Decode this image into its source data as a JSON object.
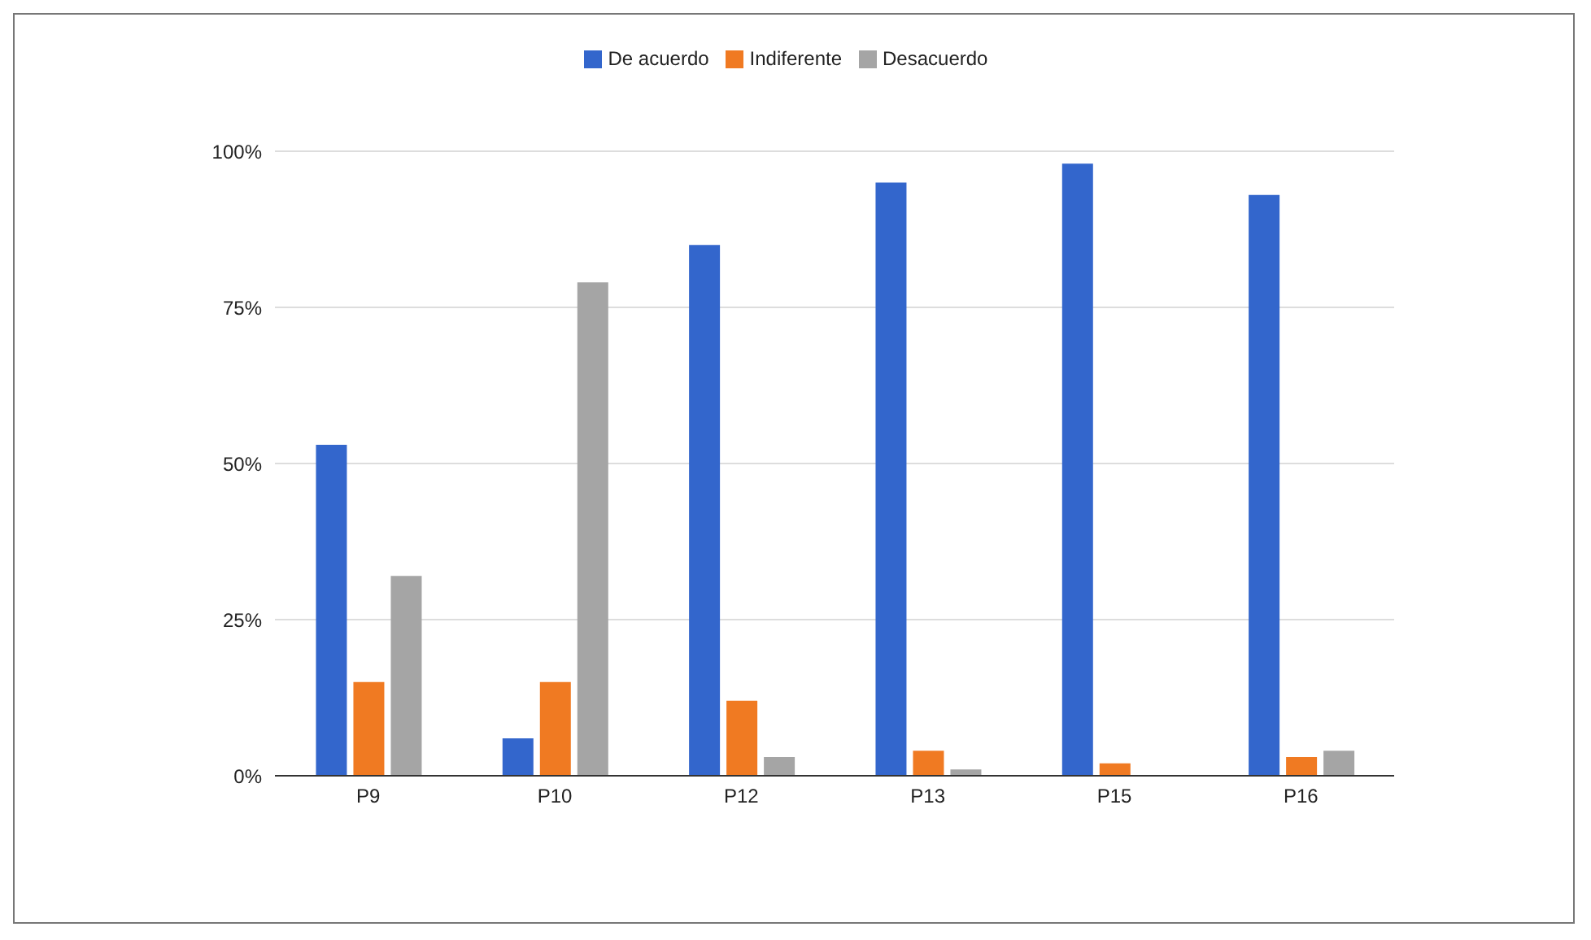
{
  "chart_data": {
    "type": "bar",
    "categories": [
      "P9",
      "P10",
      "P12",
      "P13",
      "P15",
      "P16"
    ],
    "series": [
      {
        "name": "De acuerdo",
        "color": "#3366cc",
        "values": [
          53,
          6,
          85,
          95,
          98,
          93
        ]
      },
      {
        "name": "Indiferente",
        "color": "#f07a22",
        "values": [
          15,
          15,
          12,
          4,
          2,
          3
        ]
      },
      {
        "name": "Desacuerdo",
        "color": "#a5a5a5",
        "values": [
          32,
          79,
          3,
          1,
          0,
          4
        ]
      }
    ],
    "ylim": [
      0,
      100
    ],
    "yticks": [
      {
        "value": 0,
        "label": "0%"
      },
      {
        "value": 25,
        "label": "25%"
      },
      {
        "value": 50,
        "label": "50%"
      },
      {
        "value": 75,
        "label": "75%"
      },
      {
        "value": 100,
        "label": "100%"
      }
    ],
    "grid": "y",
    "legend": "top"
  }
}
